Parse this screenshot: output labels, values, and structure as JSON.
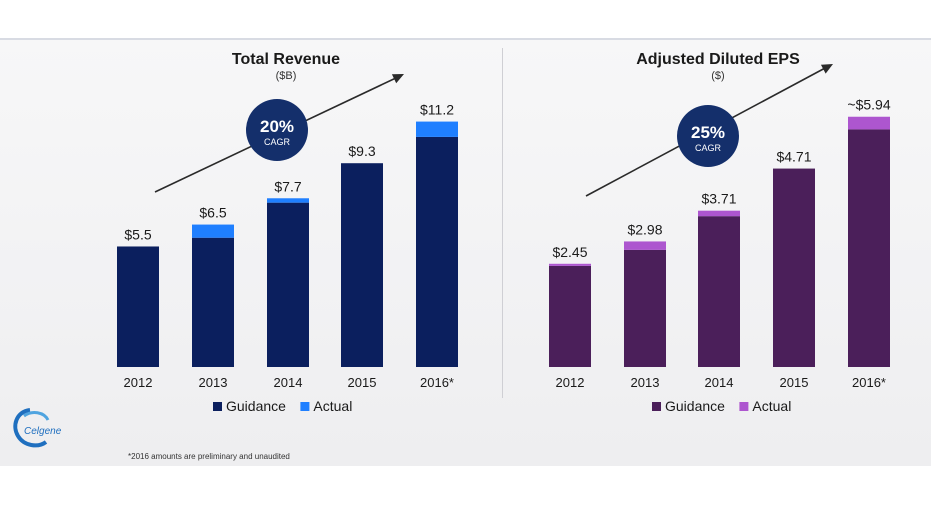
{
  "brand": {
    "logo_text": "Celgene"
  },
  "footnote": "*2016 amounts are preliminary and unaudited",
  "chart_data": [
    {
      "type": "bar",
      "title": "Total Revenue",
      "subtitle": "($B)",
      "categories": [
        "2012",
        "2013",
        "2014",
        "2015",
        "2016*"
      ],
      "series": [
        {
          "name": "Guidance",
          "values": [
            5.5,
            5.9,
            7.5,
            9.3,
            10.5
          ]
        },
        {
          "name": "Actual",
          "values": [
            0,
            0.6,
            0.2,
            0,
            0.7
          ]
        }
      ],
      "total_labels": [
        "$5.5",
        "$6.5",
        "$7.7",
        "$9.3",
        "$11.2"
      ],
      "cagr": {
        "value": "20%",
        "label": "CAGR"
      },
      "ylim": [
        0,
        11.5
      ],
      "colors": {
        "Guidance": "#0b1f5e",
        "Actual": "#1f7fff"
      },
      "legend_position": "bottom"
    },
    {
      "type": "bar",
      "title": "Adjusted Diluted EPS",
      "subtitle": "($)",
      "categories": [
        "2012",
        "2013",
        "2014",
        "2015",
        "2016*"
      ],
      "series": [
        {
          "name": "Guidance",
          "values": [
            2.4,
            2.78,
            3.58,
            4.71,
            5.64
          ]
        },
        {
          "name": "Actual",
          "values": [
            0.05,
            0.2,
            0.13,
            0,
            0.3
          ]
        }
      ],
      "total_labels": [
        "$2.45",
        "$2.98",
        "$3.71",
        "$4.71",
        "~$5.94"
      ],
      "cagr": {
        "value": "25%",
        "label": "CAGR"
      },
      "ylim": [
        0,
        6.1
      ],
      "colors": {
        "Guidance": "#4b1f5a",
        "Actual": "#ad56cf"
      },
      "legend_position": "bottom"
    }
  ]
}
